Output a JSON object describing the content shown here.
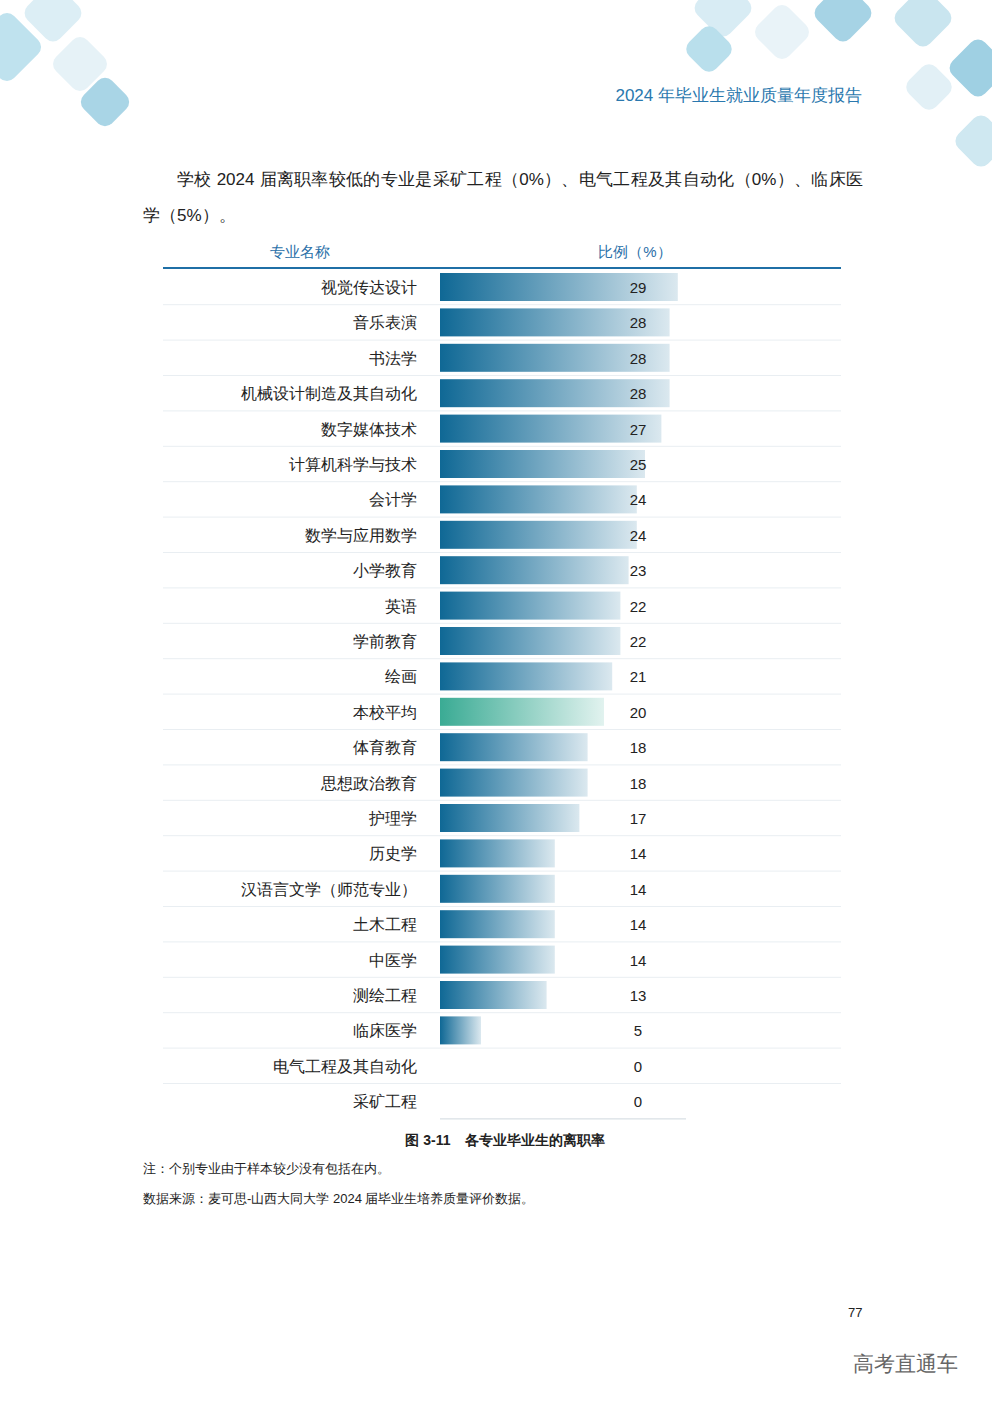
{
  "page": {
    "header": "2024 年毕业生就业质量年度报告",
    "paragraph": "学校 2024 届离职率较低的专业是采矿工程（0%）、电气工程及其自动化（0%）、临床医学（5%）。",
    "note": "注：个别专业由于样本较少没有包括在内。",
    "source": "数据来源：麦可思-山西大同大学 2024 届毕业生培养质量评价数据。",
    "page_number": "77",
    "watermark": "高考直通车"
  },
  "chart_data": {
    "type": "bar",
    "orientation": "horizontal",
    "title": "图 3-11　各专业毕业生的离职率",
    "y_label": "专业名称",
    "x_label": "比例（%）",
    "categories": [
      "视觉传达设计",
      "音乐表演",
      "书法学",
      "机械设计制造及其自动化",
      "数字媒体技术",
      "计算机科学与技术",
      "会计学",
      "数学与应用数学",
      "小学教育",
      "英语",
      "学前教育",
      "绘画",
      "本校平均",
      "体育教育",
      "思想政治教育",
      "护理学",
      "历史学",
      "汉语言文学（师范专业）",
      "土木工程",
      "中医学",
      "测绘工程",
      "临床医学",
      "电气工程及其自动化",
      "采矿工程"
    ],
    "values": [
      29,
      28,
      28,
      28,
      27,
      25,
      24,
      24,
      23,
      22,
      22,
      21,
      20,
      18,
      18,
      17,
      14,
      14,
      14,
      14,
      13,
      5,
      0,
      0
    ],
    "colors": [
      "#0f6895",
      "#0f6895",
      "#0f6895",
      "#0f6895",
      "#0f6895",
      "#0f6895",
      "#0f6895",
      "#0f6895",
      "#0f6895",
      "#0f6895",
      "#0f6895",
      "#0f6895",
      "#3aab94",
      "#0f6895",
      "#0f6895",
      "#0f6895",
      "#0f6895",
      "#0f6895",
      "#0f6895",
      "#0f6895",
      "#0f6895",
      "#0f6895",
      "#0f6895",
      "#0f6895"
    ],
    "xlim": [
      0,
      30
    ],
    "xticks": [],
    "grid": false,
    "data_labels": true,
    "tick_labels": "y"
  }
}
